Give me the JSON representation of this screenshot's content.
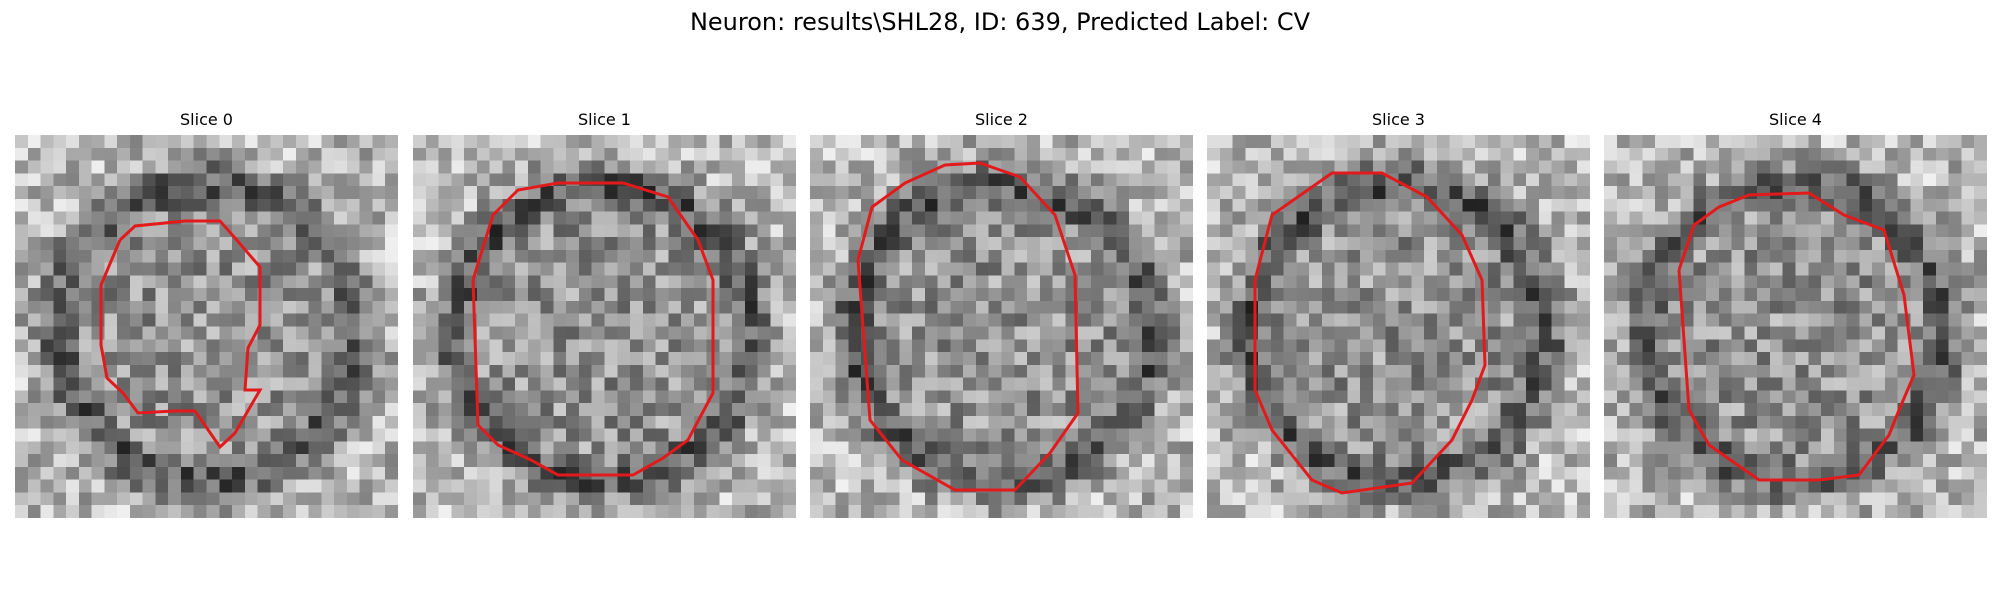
{
  "suptitle": "Neuron: results\\SHL28, ID: 639, Predicted Label: CV",
  "contour_color": "#e31a1c",
  "colormap": "gray",
  "slices": [
    {
      "title": "Slice 0"
    },
    {
      "title": "Slice 1"
    },
    {
      "title": "Slice 2"
    },
    {
      "title": "Slice 3"
    },
    {
      "title": "Slice 4"
    }
  ]
}
